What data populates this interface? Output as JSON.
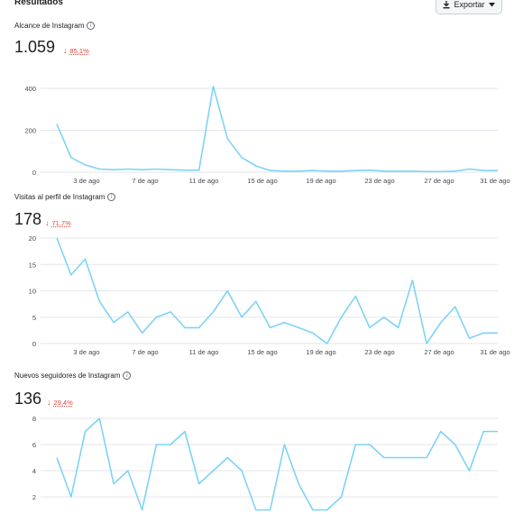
{
  "header": {
    "title": "Resultados",
    "export_label": "Exportar"
  },
  "colors": {
    "series": "#7dd3f5",
    "negative_delta": "#e0493c"
  },
  "charts": [
    {
      "label": "Alcance de Instagram",
      "value": "1.059",
      "delta": "85,1%",
      "chart_data": {
        "type": "line",
        "ylim": [
          0,
          450
        ],
        "yticks": [
          "400",
          "200",
          "0"
        ],
        "ytick_values": [
          400,
          200,
          0
        ],
        "xticks": [
          "3 de ago",
          "7 de ago",
          "11 de ago",
          "15 de ago",
          "19 de ago",
          "23 de ago",
          "27 de ago",
          "31 de ago"
        ],
        "x": [
          1,
          2,
          3,
          4,
          5,
          6,
          7,
          8,
          9,
          10,
          11,
          12,
          13,
          14,
          15,
          16,
          17,
          18,
          19,
          20,
          21,
          22,
          23,
          24,
          25,
          26,
          27,
          28,
          29,
          30,
          31,
          32
        ],
        "values": [
          230,
          70,
          35,
          15,
          12,
          15,
          12,
          15,
          12,
          10,
          10,
          410,
          160,
          70,
          30,
          8,
          5,
          5,
          8,
          5,
          5,
          8,
          10,
          5,
          5,
          5,
          3,
          3,
          5,
          15,
          8,
          8
        ]
      }
    },
    {
      "label": "Visitas al perfil de Instagram",
      "value": "178",
      "delta": "71,7%",
      "chart_data": {
        "type": "line",
        "ylim": [
          0,
          20
        ],
        "yticks": [
          "20",
          "15",
          "10",
          "5",
          "0"
        ],
        "ytick_values": [
          20,
          15,
          10,
          5,
          0
        ],
        "xticks": [
          "3 de ago",
          "7 de ago",
          "11 de ago",
          "15 de ago",
          "19 de ago",
          "23 de ago",
          "27 de ago",
          "31 de ago"
        ],
        "x": [
          1,
          2,
          3,
          4,
          5,
          6,
          7,
          8,
          9,
          10,
          11,
          12,
          13,
          14,
          15,
          16,
          17,
          18,
          19,
          20,
          21,
          22,
          23,
          24,
          25,
          26,
          27,
          28,
          29,
          30,
          31,
          32
        ],
        "values": [
          20,
          13,
          16,
          8,
          4,
          6,
          2,
          5,
          6,
          3,
          3,
          6,
          10,
          5,
          8,
          3,
          4,
          3,
          2,
          0,
          5,
          9,
          3,
          5,
          3,
          12,
          0,
          4,
          7,
          1,
          2,
          2
        ]
      }
    },
    {
      "label": "Nuevos seguidores de Instagram",
      "value": "136",
      "delta": "29,4%",
      "chart_data": {
        "type": "line",
        "ylim": [
          0,
          8
        ],
        "yticks": [
          "8",
          "6",
          "4",
          "2"
        ],
        "ytick_values": [
          8,
          6,
          4,
          2
        ],
        "xticks": [],
        "x": [
          1,
          2,
          3,
          4,
          5,
          6,
          7,
          8,
          9,
          10,
          11,
          12,
          13,
          14,
          15,
          16,
          17,
          18,
          19,
          20,
          21,
          22,
          23,
          24,
          25,
          26,
          27,
          28,
          29,
          30,
          31,
          32
        ],
        "values": [
          5,
          2,
          7,
          8,
          3,
          4,
          1,
          6,
          6,
          7,
          3,
          4,
          5,
          4,
          1,
          1,
          6,
          3,
          1,
          1,
          2,
          6,
          6,
          5,
          5,
          5,
          5,
          7,
          6,
          4,
          7,
          7
        ]
      }
    }
  ]
}
